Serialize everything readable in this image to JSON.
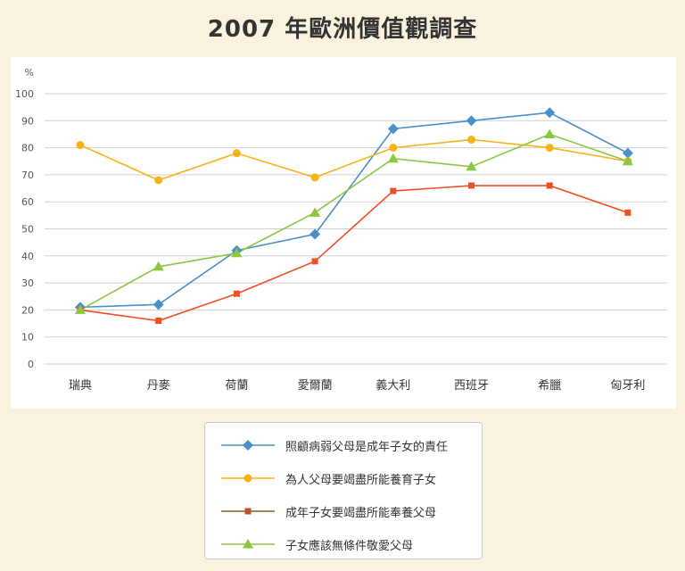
{
  "title": "2007 年歐洲價值觀調查",
  "chart_data": {
    "type": "line",
    "ylabel": "%",
    "ylim": [
      0,
      100
    ],
    "yticks": [
      0,
      10,
      20,
      30,
      40,
      50,
      60,
      70,
      80,
      90,
      100
    ],
    "grid": true,
    "categories": [
      "瑞典",
      "丹麥",
      "荷蘭",
      "愛爾蘭",
      "義大利",
      "西班牙",
      "希臘",
      "匈牙利"
    ],
    "series": [
      {
        "name": "照顧病弱父母是成年子女的責任",
        "color": "#4a90c8",
        "marker": "diamond",
        "values": [
          21,
          22,
          42,
          48,
          87,
          90,
          93,
          78
        ]
      },
      {
        "name": "為人父母要竭盡所能養育子女",
        "color": "#f5b317",
        "marker": "circle",
        "values": [
          81,
          68,
          78,
          69,
          80,
          83,
          80,
          75
        ]
      },
      {
        "name": "成年子女要竭盡所能奉養父母",
        "color": "#f04e23",
        "marker": "square",
        "values": [
          20,
          16,
          26,
          38,
          64,
          66,
          66,
          56
        ]
      },
      {
        "name": "子女應該無條件敬愛父母",
        "color": "#8dc641",
        "marker": "triangle",
        "values": [
          20,
          36,
          41,
          56,
          76,
          73,
          85,
          75
        ]
      }
    ],
    "legend": {
      "position": "bottom",
      "items": [
        {
          "label": "照顧病弱父母是成年子女的責任",
          "line_color": "#4a90c8",
          "marker": "diamond",
          "marker_color": "#4a90c8"
        },
        {
          "label": "為人父母要竭盡所能養育子女",
          "line_color": "#f5b317",
          "marker": "circle",
          "marker_color": "#f5b317"
        },
        {
          "label": "成年子女要竭盡所能奉養父母",
          "line_color": "#8b5a2b",
          "marker": "square",
          "marker_color": "#c0502a"
        },
        {
          "label": "子女應該無條件敬愛父母",
          "line_color": "#8dc641",
          "marker": "triangle",
          "marker_color": "#8dc641"
        }
      ]
    }
  }
}
